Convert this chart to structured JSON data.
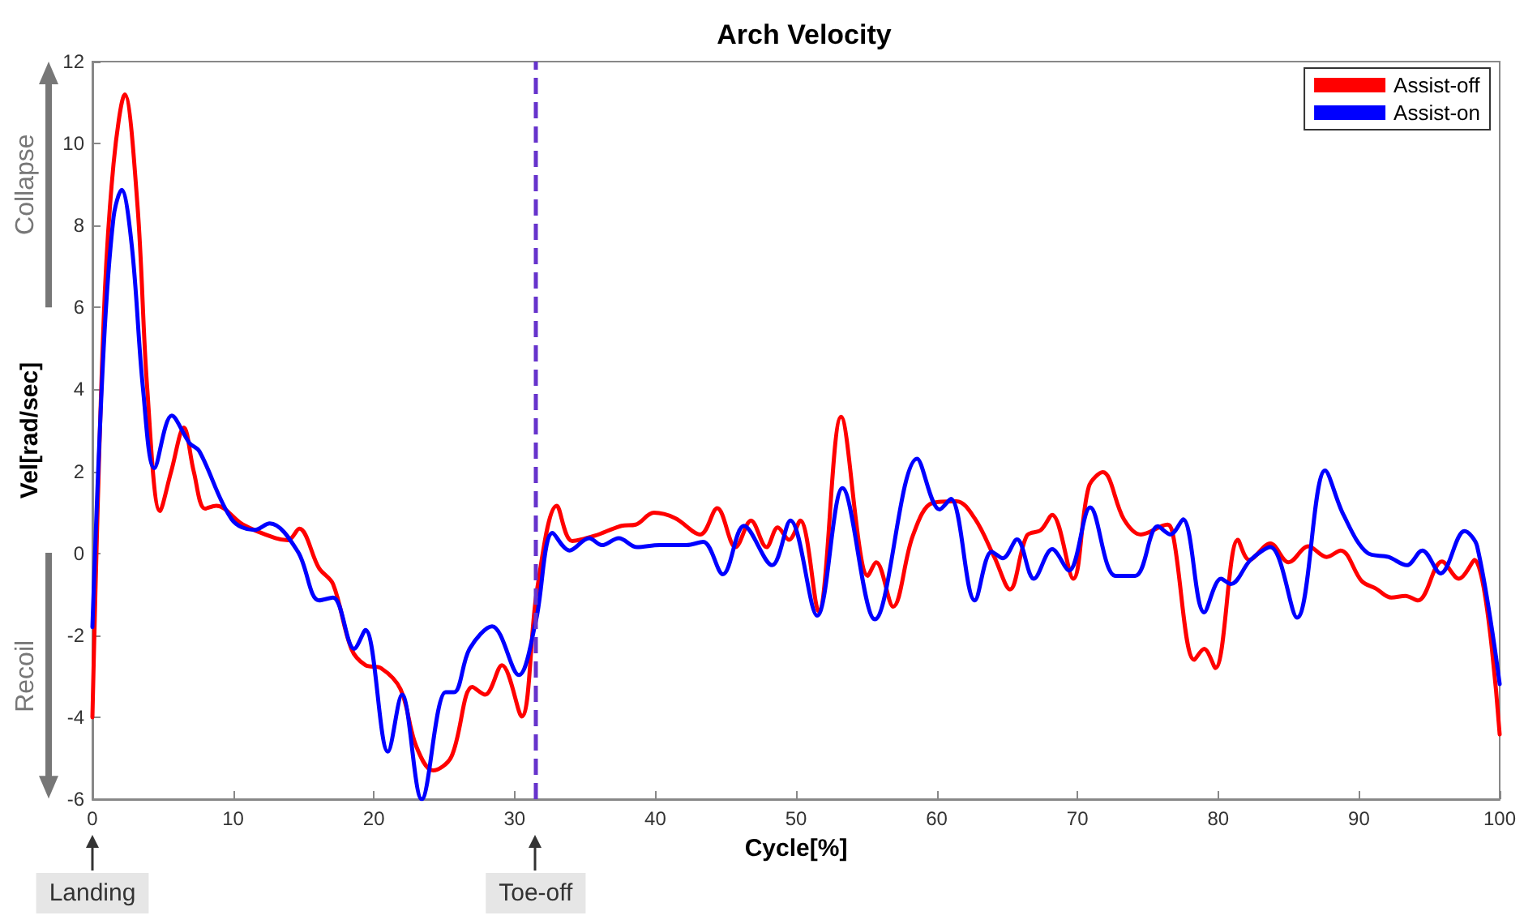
{
  "chart_data": {
    "type": "line",
    "title": "Arch Velocity",
    "xlabel": "Cycle[%]",
    "ylabel": "Vel[rad/sec]",
    "xlim": [
      0,
      100
    ],
    "xticks": [
      0,
      10,
      20,
      30,
      40,
      50,
      60,
      70,
      80,
      90,
      100
    ],
    "ylim": [
      -6,
      12
    ],
    "yticks": [
      -6,
      -4,
      -2,
      0,
      2,
      4,
      6,
      8,
      10,
      12
    ],
    "grid": false,
    "legend": "top right",
    "line_style": "solid",
    "marker": "none",
    "ref_lines": [
      {
        "axis": "x",
        "value": 31.5,
        "color": "#6633cc",
        "line_style": "dashed"
      }
    ],
    "annotations": [
      "Collapse",
      "Recoil",
      "Landing",
      "Toe-off"
    ],
    "series": [
      {
        "name": "Assist-off",
        "color": "#ff0000",
        "x": [
          0,
          0.8,
          1.5,
          2.3,
          3.2,
          3.9,
          4.8,
          5.6,
          6.5,
          7.2,
          8.0,
          8.8,
          10.7,
          13.0,
          13.9,
          14.7,
          16.1,
          17.1,
          18.4,
          19.4,
          20.5,
          21.9,
          23.0,
          24.2,
          25.5,
          27.0,
          27.9,
          29.1,
          30.5,
          31.6,
          33.0,
          34.1,
          35.7,
          37.6,
          38.6,
          39.9,
          41.4,
          43.2,
          44.4,
          45.7,
          46.8,
          47.9,
          48.7,
          49.5,
          50.3,
          51.6,
          53.2,
          55.1,
          55.7,
          56.9,
          58.3,
          59.7,
          61.4,
          62.7,
          64.1,
          65.2,
          66.4,
          67.4,
          68.2,
          69.7,
          70.8,
          71.8,
          73.3,
          74.5,
          76.4,
          76.8,
          78.3,
          79.0,
          79.8,
          81.4,
          82.2,
          83.7,
          85.0,
          86.4,
          87.7,
          88.7,
          90.2,
          91.2,
          92.3,
          93.3,
          94.2,
          95.9,
          97.1,
          98.2,
          100
        ],
        "values": [
          -4.0,
          5.7,
          9.5,
          11.2,
          8.5,
          4.0,
          1.03,
          2.0,
          3.07,
          2.0,
          1.09,
          1.16,
          0.7,
          0.37,
          0.32,
          0.6,
          -0.36,
          -0.75,
          -2.33,
          -2.73,
          -2.8,
          -3.32,
          -4.7,
          -5.3,
          -4.97,
          -3.26,
          -3.45,
          -2.73,
          -3.98,
          -0.88,
          1.16,
          0.3,
          0.43,
          0.67,
          0.7,
          0.99,
          0.86,
          0.46,
          1.1,
          0.15,
          0.8,
          0.15,
          0.63,
          0.33,
          0.8,
          -1.41,
          3.33,
          -0.55,
          -0.22,
          -1.3,
          0.43,
          1.23,
          1.27,
          0.85,
          -0.1,
          -0.88,
          0.43,
          0.57,
          0.94,
          -0.62,
          1.62,
          1.98,
          0.83,
          0.46,
          0.7,
          0.43,
          -2.6,
          -2.33,
          -2.8,
          0.33,
          -0.16,
          0.24,
          -0.22,
          0.17,
          -0.09,
          0.07,
          -0.68,
          -0.86,
          -1.08,
          -1.04,
          -1.15,
          -0.2,
          -0.62,
          -0.16,
          -4.42
        ]
      },
      {
        "name": "Assist-on",
        "color": "#0000ff",
        "x": [
          0,
          0.8,
          1.5,
          2.07,
          2.8,
          3.6,
          4.4,
          5.64,
          6.9,
          7.6,
          9.9,
          11.5,
          12.6,
          14.6,
          16.1,
          17.1,
          18.6,
          19.4,
          21.0,
          22.0,
          23.4,
          25.1,
          25.7,
          26.8,
          28.4,
          30.3,
          31.5,
          32.7,
          33.9,
          35.3,
          36.2,
          37.4,
          38.7,
          40.3,
          42.2,
          43.4,
          44.8,
          46.3,
          48.3,
          49.6,
          51.5,
          53.3,
          55.6,
          58.6,
          60.2,
          61.0,
          62.7,
          63.9,
          64.7,
          65.7,
          66.9,
          68.2,
          69.4,
          70.9,
          72.7,
          74.1,
          75.7,
          76.6,
          77.5,
          79.0,
          80.2,
          80.9,
          82.3,
          83.7,
          85.6,
          87.6,
          88.9,
          90.6,
          92.1,
          93.4,
          94.5,
          95.8,
          97.5,
          98.4,
          100
        ],
        "values": [
          -1.8,
          5.0,
          8.2,
          8.87,
          7.5,
          4.0,
          2.08,
          3.36,
          2.69,
          2.49,
          0.83,
          0.57,
          0.73,
          0.04,
          -1.15,
          -1.08,
          -2.33,
          -1.87,
          -4.84,
          -3.45,
          -6.0,
          -3.39,
          -3.39,
          -2.33,
          -1.78,
          -2.97,
          -1.67,
          0.5,
          0.07,
          0.37,
          0.2,
          0.37,
          0.15,
          0.2,
          0.2,
          0.28,
          -0.51,
          0.67,
          -0.29,
          0.8,
          -1.52,
          1.59,
          -1.61,
          2.31,
          1.07,
          1.33,
          -1.15,
          0.04,
          -0.12,
          0.34,
          -0.62,
          0.1,
          -0.42,
          1.12,
          -0.55,
          -0.55,
          0.66,
          0.46,
          0.83,
          -1.44,
          -0.62,
          -0.75,
          -0.16,
          0.15,
          -1.57,
          2.02,
          0.94,
          0.01,
          -0.09,
          -0.29,
          0.07,
          -0.49,
          0.54,
          0.17,
          -3.19
        ]
      }
    ]
  }
}
